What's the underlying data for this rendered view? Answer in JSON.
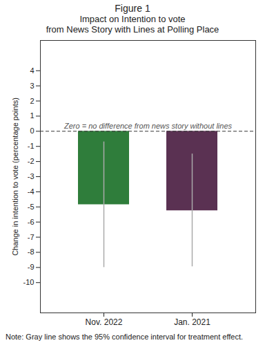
{
  "chart_data": {
    "type": "bar",
    "title": "Figure 1",
    "subtitle": "Impact on Intention to vote\nfrom News Story with Lines at Polling Place",
    "y_label": "Change in intention to vote (percentage points)",
    "categories": [
      "Nov. 2022",
      "Jan. 2021"
    ],
    "values": [
      -4.85,
      -5.25
    ],
    "ci_low": [
      -9.0,
      -8.95
    ],
    "ci_high": [
      -0.7,
      -1.5
    ],
    "colors": [
      "#2f7d3b",
      "#5a3152"
    ],
    "ylim": [
      -12,
      6
    ],
    "yticks": [
      -10,
      -9,
      -8,
      -7,
      -6,
      -5,
      -4,
      -3,
      -2,
      -1,
      0,
      1,
      2,
      3,
      4
    ],
    "grid": false,
    "annotations": [
      {
        "text": "Zero = no difference from news story without lines",
        "y": 0
      }
    ],
    "note": "Note: Gray line shows the 95% confidence interval for treatment effect."
  }
}
